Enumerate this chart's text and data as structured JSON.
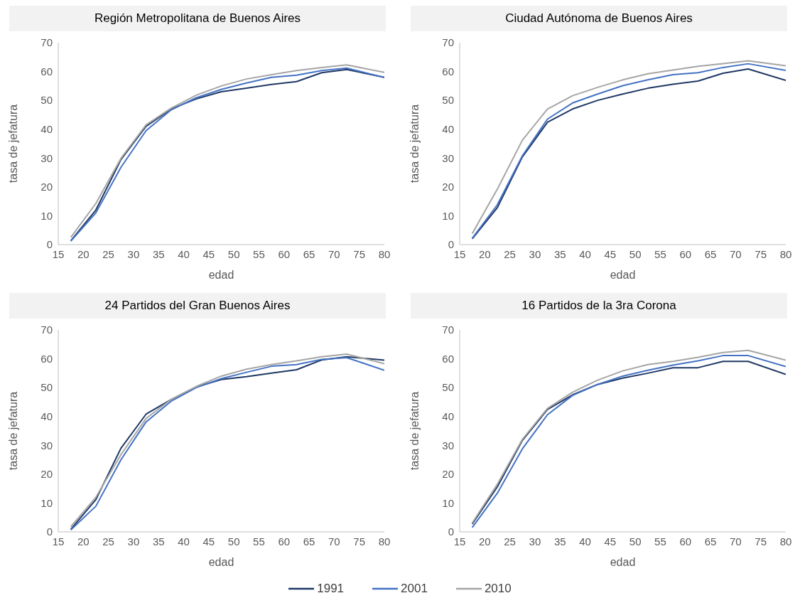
{
  "chart_data": [
    {
      "type": "line",
      "title": "Región Metropolitana de Buenos Aires",
      "xlabel": "edad",
      "ylabel": "tasa de jefatura",
      "x": [
        17.5,
        22.5,
        27.5,
        32.5,
        37.5,
        42.5,
        47.5,
        52.5,
        57.5,
        62.5,
        67.5,
        72.5,
        80
      ],
      "xlim": [
        15,
        80
      ],
      "xticks": [
        15,
        20,
        25,
        30,
        35,
        40,
        45,
        50,
        55,
        60,
        65,
        70,
        75,
        80
      ],
      "ylim": [
        0,
        70
      ],
      "yticks": [
        0,
        10,
        20,
        30,
        40,
        50,
        60,
        70
      ],
      "grid": false,
      "legend": "bottom",
      "series": [
        {
          "name": "1991",
          "color": "#1f3864",
          "values": [
            1.3,
            12,
            29.5,
            41,
            47,
            50.5,
            53,
            54.2,
            55.5,
            56.5,
            59.6,
            60.7,
            58
          ]
        },
        {
          "name": "2001",
          "color": "#4472c4",
          "values": [
            1.2,
            11,
            26.8,
            39.5,
            46.7,
            50.9,
            53.8,
            56,
            58,
            58.7,
            60.3,
            61.2,
            57.9
          ]
        },
        {
          "name": "2010",
          "color": "#a5a5a5",
          "values": [
            2.5,
            14.3,
            29.9,
            41.5,
            47.3,
            51.8,
            55,
            57.4,
            58.9,
            60.3,
            61.4,
            62.3,
            59.7
          ]
        }
      ]
    },
    {
      "type": "line",
      "title": "Ciudad Autónoma de Buenos Aires",
      "xlabel": "edad",
      "ylabel": "tasa de jefatura",
      "x": [
        17.5,
        22.5,
        27.5,
        32.5,
        37.5,
        42.5,
        47.5,
        52.5,
        57.5,
        62.5,
        67.5,
        72.5,
        80
      ],
      "xlim": [
        15,
        80
      ],
      "xticks": [
        15,
        20,
        25,
        30,
        35,
        40,
        45,
        50,
        55,
        60,
        65,
        70,
        75,
        80
      ],
      "ylim": [
        0,
        70
      ],
      "yticks": [
        0,
        10,
        20,
        30,
        40,
        50,
        60,
        70
      ],
      "grid": false,
      "legend": "bottom",
      "series": [
        {
          "name": "1991",
          "color": "#1f3864",
          "values": [
            2,
            12.8,
            30.4,
            42.4,
            47,
            50,
            52.2,
            54.2,
            55.6,
            56.7,
            59.4,
            60.9,
            56.9
          ]
        },
        {
          "name": "2001",
          "color": "#4472c4",
          "values": [
            2.2,
            13.8,
            30.8,
            43.5,
            49.1,
            52.2,
            55.1,
            57.1,
            58.9,
            59.6,
            61.4,
            62.7,
            60.4
          ]
        },
        {
          "name": "2010",
          "color": "#a5a5a5",
          "values": [
            3.8,
            19.2,
            36.2,
            47,
            51.6,
            54.5,
            57.1,
            59.2,
            60.5,
            61.8,
            62.7,
            63.7,
            62
          ]
        }
      ]
    },
    {
      "type": "line",
      "title": "24 Partidos del Gran Buenos Aires",
      "xlabel": "edad",
      "ylabel": "tasa de jefatura",
      "x": [
        17.5,
        22.5,
        27.5,
        32.5,
        37.5,
        42.5,
        47.5,
        52.5,
        57.5,
        62.5,
        67.5,
        72.5,
        80
      ],
      "xlim": [
        15,
        80
      ],
      "xticks": [
        15,
        20,
        25,
        30,
        35,
        40,
        45,
        50,
        55,
        60,
        65,
        70,
        75,
        80
      ],
      "ylim": [
        0,
        70
      ],
      "yticks": [
        0,
        10,
        20,
        30,
        40,
        50,
        60,
        70
      ],
      "grid": false,
      "legend": "bottom",
      "series": [
        {
          "name": "1991",
          "color": "#1f3864",
          "values": [
            0.9,
            11.2,
            29,
            40.8,
            45.9,
            50.2,
            52.8,
            53.8,
            55,
            56.2,
            59.6,
            60.7,
            59.5
          ]
        },
        {
          "name": "2001",
          "color": "#4472c4",
          "values": [
            0.7,
            8.9,
            25,
            38.1,
            45.3,
            50,
            53.1,
            55.3,
            57.4,
            58,
            59.8,
            60.4,
            56
          ]
        },
        {
          "name": "2010",
          "color": "#a5a5a5",
          "values": [
            1.8,
            12,
            26.8,
            39.3,
            45.9,
            50.4,
            54,
            56.4,
            58,
            59.3,
            60.7,
            61.6,
            58.3
          ]
        }
      ]
    },
    {
      "type": "line",
      "title": "16 Partidos de la 3ra Corona",
      "xlabel": "edad",
      "ylabel": "tasa de jefatura",
      "x": [
        17.5,
        22.5,
        27.5,
        32.5,
        37.5,
        42.5,
        47.5,
        52.5,
        57.5,
        62.5,
        67.5,
        72.5,
        80
      ],
      "xlim": [
        15,
        80
      ],
      "xticks": [
        15,
        20,
        25,
        30,
        35,
        40,
        45,
        50,
        55,
        60,
        65,
        70,
        75,
        80
      ],
      "ylim": [
        0,
        70
      ],
      "yticks": [
        0,
        10,
        20,
        30,
        40,
        50,
        60,
        70
      ],
      "grid": false,
      "legend": "bottom",
      "series": [
        {
          "name": "1991",
          "color": "#1f3864",
          "values": [
            2.7,
            15.6,
            31.7,
            42.4,
            47.5,
            51.1,
            53.3,
            55,
            56.9,
            56.9,
            59.1,
            59.1,
            54.6
          ]
        },
        {
          "name": "2001",
          "color": "#4472c4",
          "values": [
            1.5,
            13.4,
            28.8,
            40.6,
            47.3,
            51.1,
            54,
            56,
            57.8,
            59.3,
            61.1,
            61.1,
            57.3
          ]
        },
        {
          "name": "2010",
          "color": "#a5a5a5",
          "values": [
            3.1,
            16.5,
            32.1,
            42.8,
            48.4,
            52.6,
            55.8,
            58,
            59.1,
            60.5,
            62.2,
            62.9,
            59.5
          ]
        }
      ]
    }
  ]
}
